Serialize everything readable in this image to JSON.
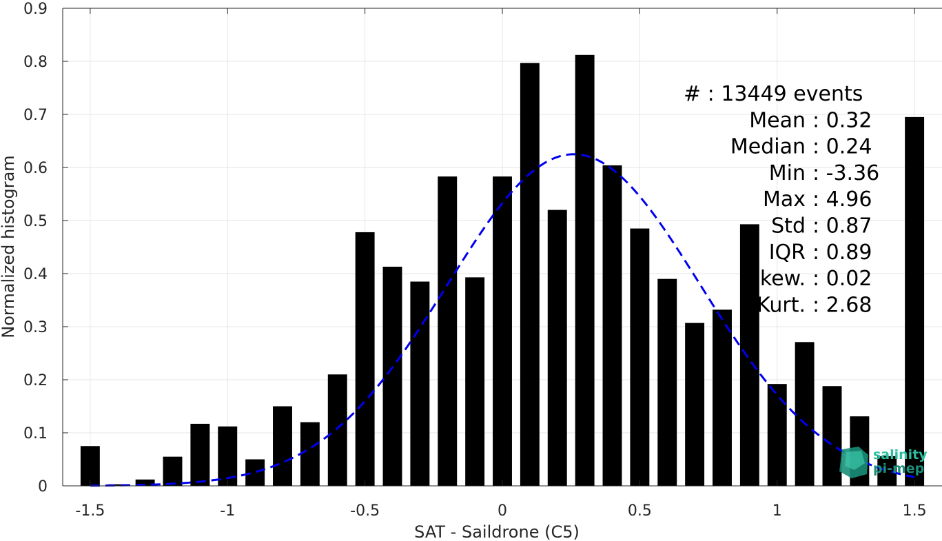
{
  "chart_data": {
    "type": "bar",
    "title": "",
    "xlabel": "SAT - Saildrone (C5)",
    "ylabel": "Normalized histogram",
    "xlim": [
      -1.6,
      1.6
    ],
    "ylim": [
      0,
      0.9
    ],
    "grid": true,
    "x": [
      -1.5,
      -1.4,
      -1.3,
      -1.2,
      -1.1,
      -1.0,
      -0.9,
      -0.8,
      -0.7,
      -0.6,
      -0.5,
      -0.4,
      -0.3,
      -0.2,
      -0.1,
      0.0,
      0.1,
      0.2,
      0.3,
      0.4,
      0.5,
      0.6,
      0.7,
      0.8,
      0.9,
      1.0,
      1.1,
      1.2,
      1.3,
      1.4,
      1.5
    ],
    "values": [
      0.075,
      0.003,
      0.012,
      0.055,
      0.117,
      0.112,
      0.05,
      0.15,
      0.12,
      0.21,
      0.478,
      0.413,
      0.385,
      0.583,
      0.393,
      0.583,
      0.797,
      0.52,
      0.812,
      0.604,
      0.485,
      0.39,
      0.307,
      0.332,
      0.493,
      0.192,
      0.271,
      0.188,
      0.131,
      0.056,
      0.695
    ],
    "xticks": [
      -1.5,
      -1,
      -0.5,
      0,
      0.5,
      1,
      1.5
    ],
    "xtick_labels": [
      "-1.5",
      "-1",
      "-0.5",
      "0",
      "0.5",
      "1",
      "1.5"
    ],
    "yticks": [
      0,
      0.1,
      0.2,
      0.3,
      0.4,
      0.5,
      0.6,
      0.7,
      0.8,
      0.9
    ],
    "ytick_labels": [
      "0",
      "0.1",
      "0.2",
      "0.3",
      "0.4",
      "0.5",
      "0.6",
      "0.7",
      "0.8",
      "0.9"
    ],
    "fit_curve": {
      "type": "gaussian",
      "mean": 0.26,
      "std": 0.46,
      "peak": 0.625,
      "style": "dashed"
    },
    "colors": {
      "bars": "#000000",
      "fit": "#0000ee",
      "grid": "#e6e6e6",
      "axis": "#262626"
    }
  },
  "stats": [
    {
      "label": "#",
      "sep": " : ",
      "value": "13449 events"
    },
    {
      "label": "Mean",
      "sep": " : ",
      "value": "0.32"
    },
    {
      "label": "Median",
      "sep": " : ",
      "value": "0.24"
    },
    {
      "label": "Min",
      "sep": " : ",
      "value": "-3.36"
    },
    {
      "label": "Max",
      "sep": " : ",
      "value": "4.96"
    },
    {
      "label": "Std",
      "sep": " : ",
      "value": "0.87"
    },
    {
      "label": "IQR",
      "sep": " : ",
      "value": "0.89"
    },
    {
      "label": "Skew.",
      "sep": " : ",
      "value": "0.02"
    },
    {
      "label": "Kurt.",
      "sep": " : ",
      "value": "2.68"
    }
  ],
  "logo": {
    "line1": "salinity",
    "line2": "pi-mep",
    "color1": "#2bbfa0",
    "color2": "#1a8f7a"
  }
}
